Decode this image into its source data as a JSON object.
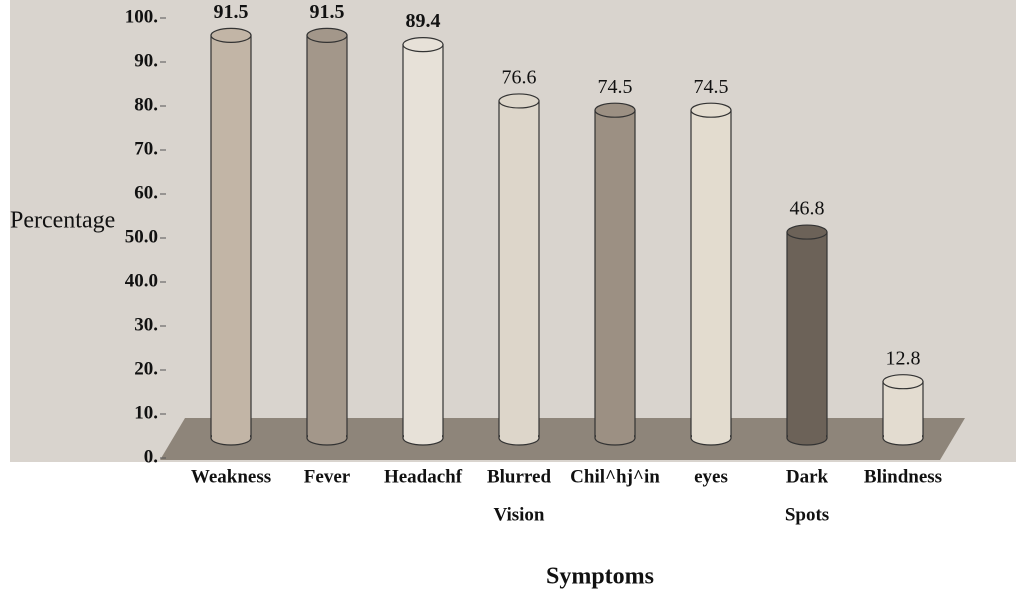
{
  "chart_data": {
    "type": "bar",
    "y_label": "Percentage",
    "x_label": "Symptoms",
    "categories": [
      [
        "Weakness"
      ],
      [
        "Fever"
      ],
      [
        "Headachf"
      ],
      [
        "Blurred",
        "Vision"
      ],
      [
        "Chil^hj^in"
      ],
      [
        "eyes"
      ],
      [
        "Dark",
        "Spots"
      ],
      [
        "Blindness"
      ]
    ],
    "values": [
      91.5,
      91.5,
      89.4,
      76.6,
      74.5,
      74.5,
      46.8,
      12.8
    ],
    "colors": [
      "#c2b5a6",
      "#a3978a",
      "#e7e1d8",
      "#ddd6ca",
      "#9c9083",
      "#e3dccf",
      "#6c6258",
      "#e3dcd0"
    ],
    "ylim": [
      0,
      100
    ],
    "yticks": [
      {
        "value": 0,
        "label": "0."
      },
      {
        "value": 10,
        "label": "10."
      },
      {
        "value": 20,
        "label": "20."
      },
      {
        "value": 30,
        "label": "30."
      },
      {
        "value": 40,
        "label": "40.0"
      },
      {
        "value": 50,
        "label": "50.0"
      },
      {
        "value": 60,
        "label": "60."
      },
      {
        "value": 70,
        "label": "70."
      },
      {
        "value": 80,
        "label": "80."
      },
      {
        "value": 90,
        "label": "90."
      },
      {
        "value": 100,
        "label": "100."
      }
    ]
  }
}
